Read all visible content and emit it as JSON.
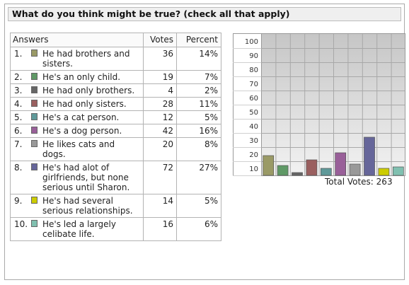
{
  "poll": {
    "question": "What do you think might be true? (check all that apply)",
    "headers": {
      "answers": "Answers",
      "votes": "Votes",
      "percent": "Percent"
    },
    "total_label": "Total Votes:",
    "total_value": "263",
    "answers": [
      {
        "rank": "1.",
        "text": "He had brothers and sisters.",
        "votes": "36",
        "percent": "14%",
        "color": "#9a9a66"
      },
      {
        "rank": "2.",
        "text": "He's an only child.",
        "votes": "19",
        "percent": "7%",
        "color": "#5f9966"
      },
      {
        "rank": "3.",
        "text": "He had only brothers.",
        "votes": "4",
        "percent": "2%",
        "color": "#666666"
      },
      {
        "rank": "4.",
        "text": "He had only sisters.",
        "votes": "28",
        "percent": "11%",
        "color": "#9a5f5f"
      },
      {
        "rank": "5.",
        "text": "He's a cat person.",
        "votes": "12",
        "percent": "5%",
        "color": "#5f9999"
      },
      {
        "rank": "6.",
        "text": "He's a dog person.",
        "votes": "42",
        "percent": "16%",
        "color": "#995f99"
      },
      {
        "rank": "7.",
        "text": "He likes cats and dogs.",
        "votes": "20",
        "percent": "8%",
        "color": "#999999"
      },
      {
        "rank": "8.",
        "text": "He's had alot of girlfriends, but none serious until Sharon.",
        "votes": "72",
        "percent": "27%",
        "color": "#66669a"
      },
      {
        "rank": "9.",
        "text": "He's had several serious relationships.",
        "votes": "14",
        "percent": "5%",
        "color": "#cccc00"
      },
      {
        "rank": "10.",
        "text": "He's led a largely celibate life.",
        "votes": "16",
        "percent": "6%",
        "color": "#80c0b0"
      }
    ]
  },
  "chart_data": {
    "type": "bar",
    "categories": [
      "1",
      "2",
      "3",
      "4",
      "5",
      "6",
      "7",
      "8",
      "9",
      "10"
    ],
    "values": [
      14,
      7,
      2,
      11,
      5,
      16,
      8,
      27,
      5,
      6
    ],
    "ylim": [
      0,
      100
    ],
    "yticks": [
      "100",
      "90",
      "80",
      "70",
      "60",
      "50",
      "40",
      "30",
      "20",
      "10"
    ],
    "grid": true
  }
}
